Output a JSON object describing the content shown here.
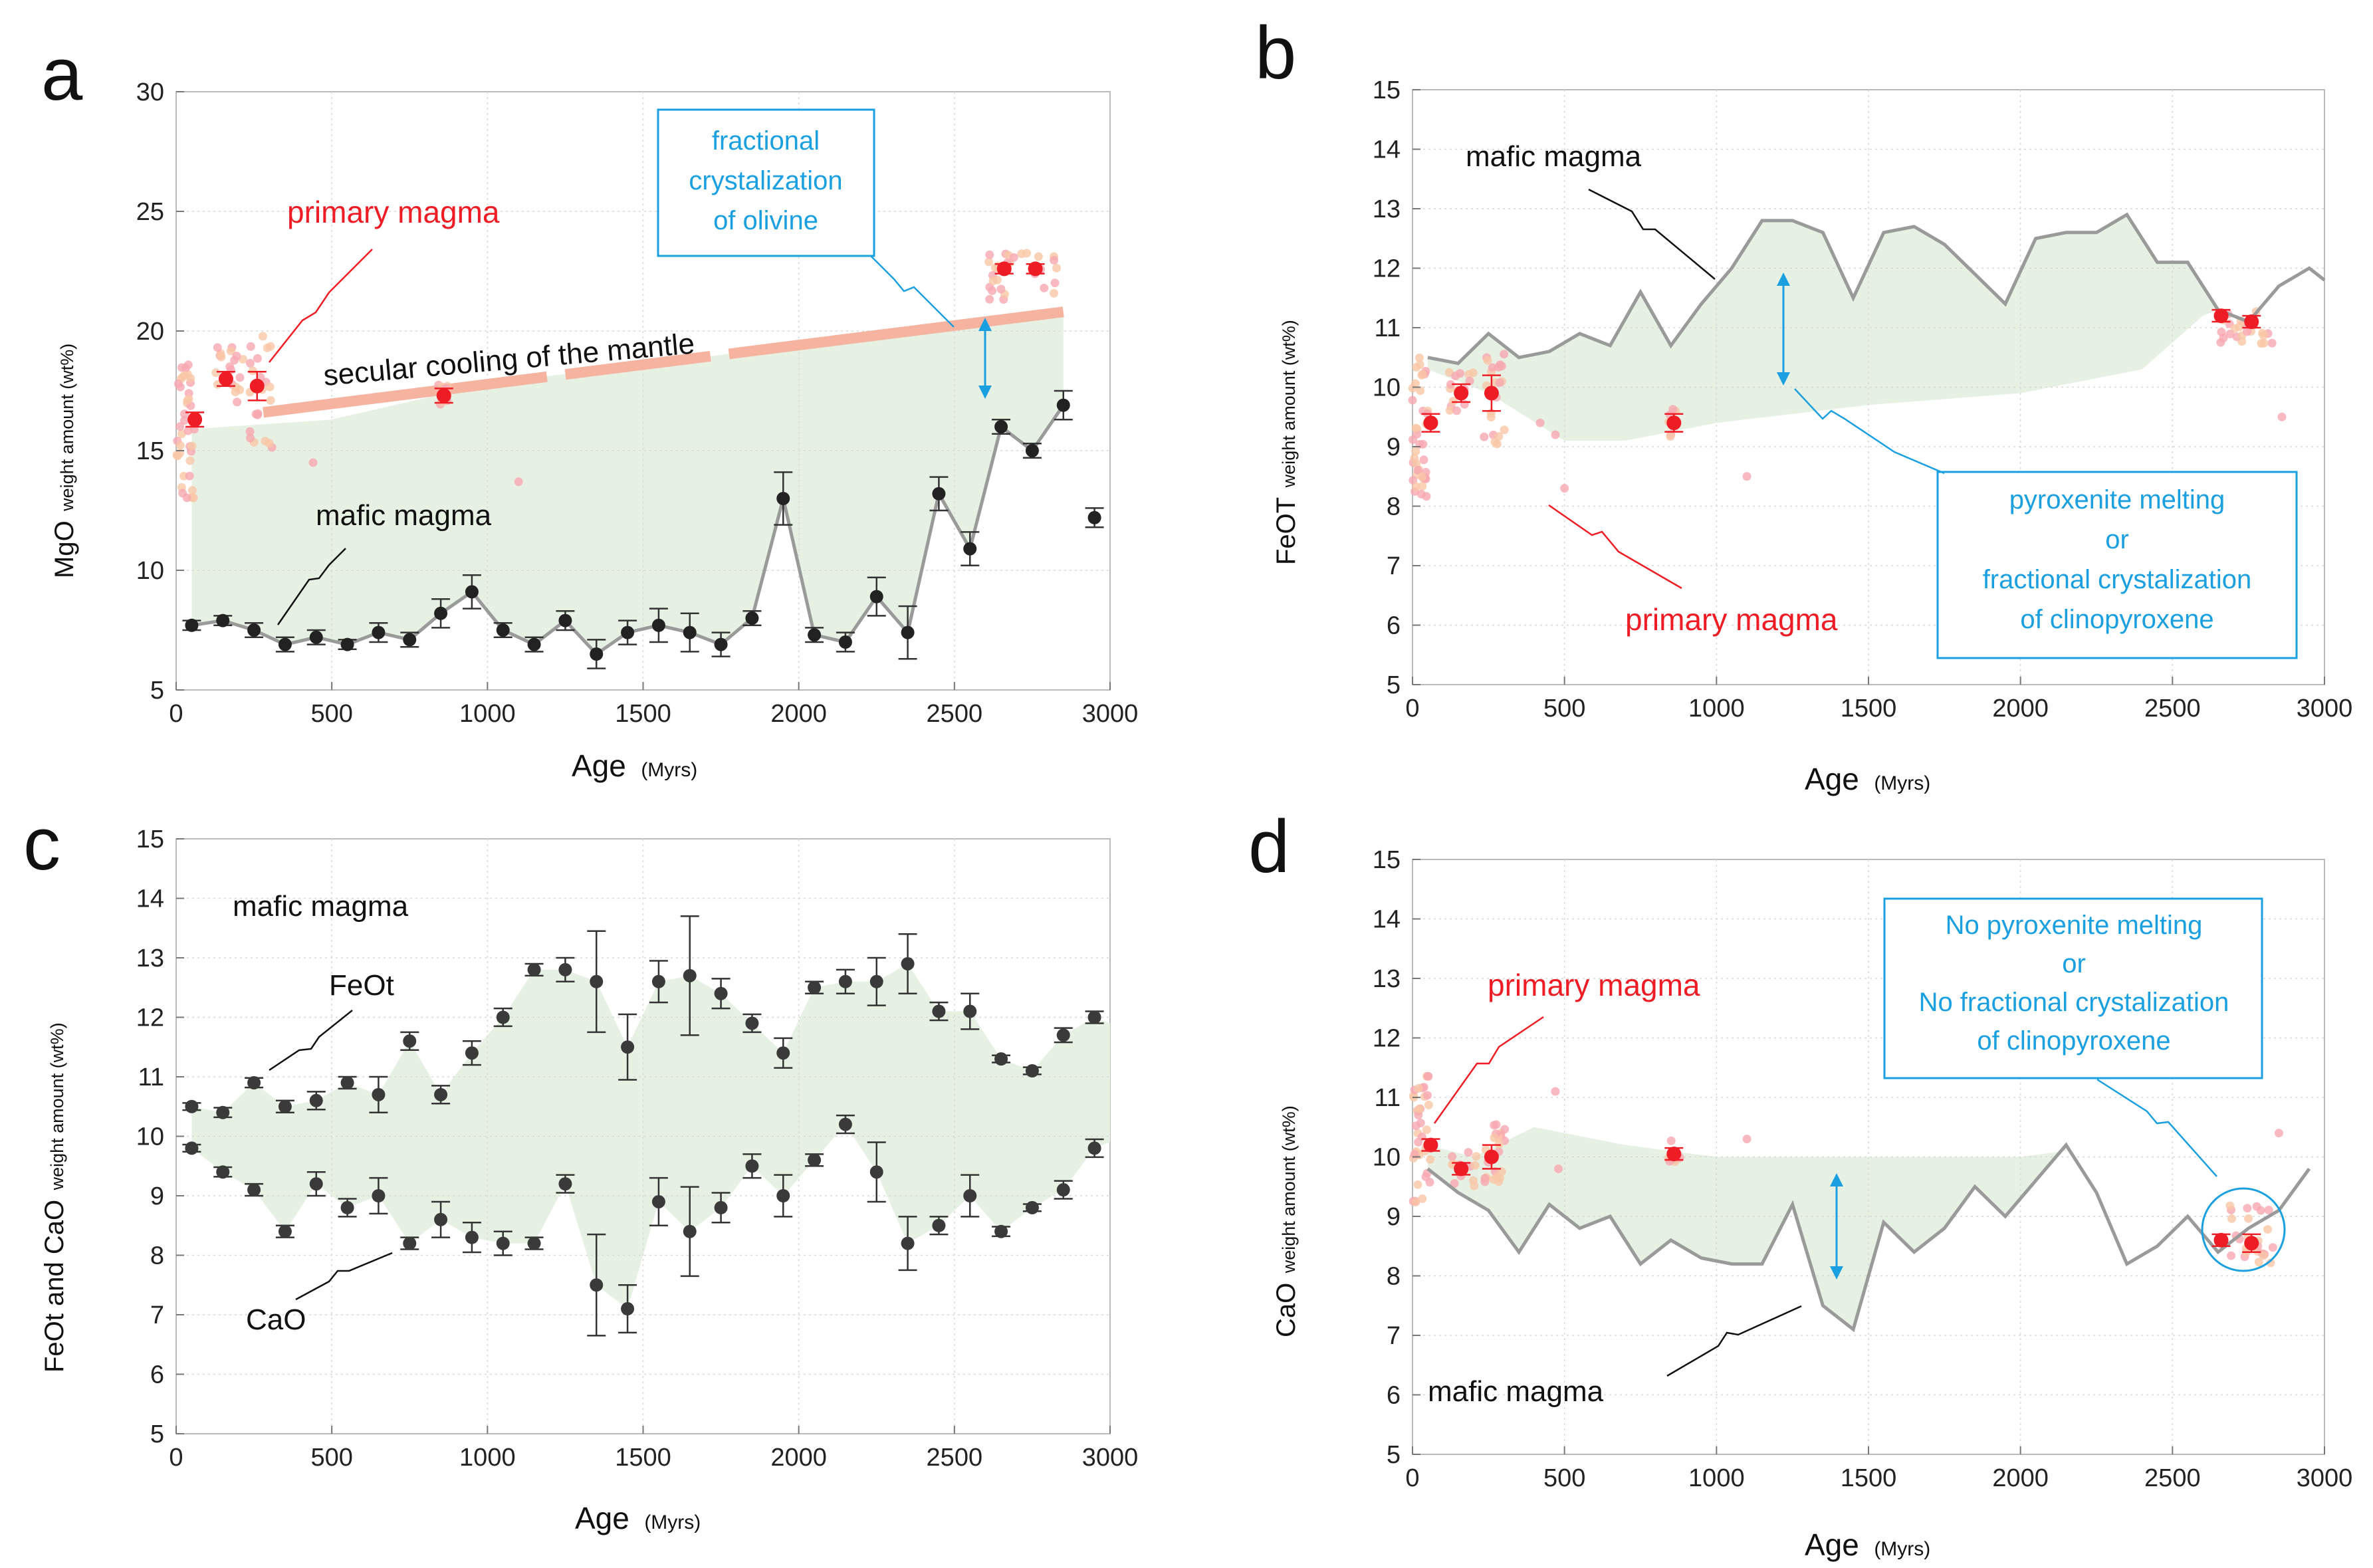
{
  "colors": {
    "envelope": "#e6f1e4",
    "mafic_line": "#9a9a9a",
    "mafic_point": "#222222",
    "primary_point": "#ee1c24",
    "primary_cloud": "#f7a8b0",
    "primary_cloud_alt": "#f9c7a6",
    "blue": "#1aa0e0",
    "cooling": "#f6b3a0"
  },
  "chart_data": [
    {
      "panel": "a",
      "type": "scatter",
      "ylabel_main": "MgO",
      "ylabel_small": "weight amount (wt%)",
      "xlabel": "Age",
      "xlabel_unit": "(Myrs)",
      "xlim": [
        0,
        3000
      ],
      "ylim": [
        5,
        30
      ],
      "xticks": [
        "0",
        "500",
        "1000",
        "1500",
        "2000",
        "2500",
        "3000"
      ],
      "yticks": [
        "5",
        "10",
        "15",
        "20",
        "25",
        "30"
      ],
      "series": [
        {
          "name": "mafic magma",
          "x": [
            50,
            150,
            250,
            350,
            450,
            550,
            650,
            750,
            850,
            950,
            1050,
            1150,
            1250,
            1350,
            1450,
            1550,
            1650,
            1750,
            1850,
            1950,
            2050,
            2150,
            2250,
            2350,
            2450,
            2550,
            2650,
            2750,
            2850,
            2950
          ],
          "y": [
            7.7,
            7.9,
            7.5,
            6.9,
            7.2,
            6.9,
            7.4,
            7.1,
            8.2,
            9.1,
            7.5,
            6.9,
            7.9,
            6.5,
            7.4,
            7.7,
            7.4,
            6.9,
            8.0,
            13.0,
            7.3,
            7.0,
            8.9,
            7.4,
            13.2,
            10.9,
            16.0,
            15.0,
            16.9,
            12.2
          ],
          "err": [
            0.2,
            0.2,
            0.3,
            0.3,
            0.3,
            0.2,
            0.4,
            0.3,
            0.6,
            0.7,
            0.3,
            0.3,
            0.4,
            0.6,
            0.5,
            0.7,
            0.8,
            0.5,
            0.3,
            1.1,
            0.3,
            0.4,
            0.8,
            1.1,
            0.7,
            0.7,
            0.3,
            0.3,
            0.6,
            0.4
          ]
        },
        {
          "name": "primary magma",
          "x": [
            60,
            160,
            260,
            860,
            2660,
            2760
          ],
          "y": [
            16.3,
            18.0,
            17.7,
            17.3,
            22.6,
            22.6
          ],
          "err": [
            0.3,
            0.3,
            0.6,
            0.3,
            0.2,
            0.2
          ]
        }
      ],
      "envelope_top": [
        [
          50,
          15.9
        ],
        [
          500,
          16.3
        ],
        [
          1000,
          17.8
        ],
        [
          1500,
          18.6
        ],
        [
          2000,
          19.4
        ],
        [
          2500,
          20.0
        ],
        [
          2850,
          20.8
        ]
      ],
      "line_label_series": "mafic magma",
      "annotations": {
        "mafic": "mafic magma",
        "primary": "primary magma",
        "cooling": "secular cooling of the mantle",
        "box_lines": [
          "fractional",
          "crystalization",
          "of olivine"
        ]
      }
    },
    {
      "panel": "b",
      "type": "line",
      "ylabel_main": "FeOT",
      "ylabel_small": "weight amount (wt%)",
      "xlabel": "Age",
      "xlabel_unit": "(Myrs)",
      "xlim": [
        0,
        3000
      ],
      "ylim": [
        5,
        15
      ],
      "xticks": [
        "0",
        "500",
        "1000",
        "1500",
        "2000",
        "2500",
        "3000"
      ],
      "yticks": [
        "5",
        "6",
        "7",
        "8",
        "9",
        "10",
        "11",
        "12",
        "13",
        "14",
        "15"
      ],
      "series": [
        {
          "name": "mafic magma",
          "x": [
            50,
            150,
            250,
            350,
            450,
            550,
            650,
            750,
            850,
            950,
            1050,
            1150,
            1250,
            1350,
            1450,
            1550,
            1650,
            1750,
            1850,
            1950,
            2050,
            2150,
            2250,
            2350,
            2450,
            2550,
            2650,
            2750,
            2850,
            2950,
            3000
          ],
          "y": [
            10.5,
            10.4,
            10.9,
            10.5,
            10.6,
            10.9,
            10.7,
            11.6,
            10.7,
            11.4,
            12.0,
            12.8,
            12.8,
            12.6,
            11.5,
            12.6,
            12.7,
            12.4,
            11.9,
            11.4,
            12.5,
            12.6,
            12.6,
            12.9,
            12.1,
            12.1,
            11.3,
            11.1,
            11.7,
            12.0,
            11.8
          ]
        },
        {
          "name": "primary magma",
          "x": [
            60,
            160,
            260,
            860,
            2660,
            2760
          ],
          "y": [
            9.4,
            9.9,
            9.9,
            9.4,
            11.2,
            11.1
          ],
          "err": [
            0.15,
            0.15,
            0.3,
            0.15,
            0.1,
            0.1
          ]
        }
      ],
      "envelope_bottom": [
        [
          50,
          10.3
        ],
        [
          250,
          9.9
        ],
        [
          500,
          9.1
        ],
        [
          700,
          9.1
        ],
        [
          1000,
          9.4
        ],
        [
          1500,
          9.7
        ],
        [
          2000,
          9.9
        ],
        [
          2400,
          10.3
        ],
        [
          2600,
          11.2
        ]
      ],
      "annotations": {
        "mafic": "mafic magma",
        "primary": "primary magma",
        "box_lines": [
          "pyroxenite melting",
          "or",
          "fractional crystalization",
          "of  clinopyroxene"
        ]
      }
    },
    {
      "panel": "c",
      "type": "scatter",
      "ylabel_main": "FeOt and CaO",
      "ylabel_small": "weight amount (wt%)",
      "xlabel": "Age",
      "xlabel_unit": "(Myrs)",
      "xlim": [
        0,
        3000
      ],
      "ylim": [
        5,
        15
      ],
      "xticks": [
        "0",
        "500",
        "1000",
        "1500",
        "2000",
        "2500",
        "3000"
      ],
      "yticks": [
        "5",
        "6",
        "7",
        "8",
        "9",
        "10",
        "11",
        "12",
        "13",
        "14",
        "15"
      ],
      "series": [
        {
          "name": "FeOt",
          "x": [
            50,
            150,
            250,
            350,
            450,
            550,
            650,
            750,
            850,
            950,
            1050,
            1150,
            1250,
            1350,
            1450,
            1550,
            1650,
            1750,
            1850,
            1950,
            2050,
            2150,
            2250,
            2350,
            2450,
            2550,
            2650,
            2750,
            2850,
            2950
          ],
          "y": [
            10.5,
            10.4,
            10.9,
            10.5,
            10.6,
            10.9,
            10.7,
            11.6,
            10.7,
            11.4,
            12.0,
            12.8,
            12.8,
            12.6,
            11.5,
            12.6,
            12.7,
            12.4,
            11.9,
            11.4,
            12.5,
            12.6,
            12.6,
            12.9,
            12.1,
            12.1,
            11.3,
            11.1,
            11.7,
            12.0
          ],
          "err": [
            0.06,
            0.08,
            0.08,
            0.1,
            0.15,
            0.1,
            0.3,
            0.15,
            0.15,
            0.2,
            0.15,
            0.1,
            0.2,
            0.85,
            0.55,
            0.35,
            1.0,
            0.25,
            0.15,
            0.25,
            0.1,
            0.2,
            0.4,
            0.5,
            0.15,
            0.3,
            0.06,
            0.06,
            0.12,
            0.1
          ]
        },
        {
          "name": "CaO",
          "x": [
            50,
            150,
            250,
            350,
            450,
            550,
            650,
            750,
            850,
            950,
            1050,
            1150,
            1250,
            1350,
            1450,
            1550,
            1650,
            1750,
            1850,
            1950,
            2050,
            2150,
            2250,
            2350,
            2450,
            2550,
            2650,
            2750,
            2850,
            2950
          ],
          "y": [
            9.8,
            9.4,
            9.1,
            8.4,
            9.2,
            8.8,
            9.0,
            8.2,
            8.6,
            8.3,
            8.2,
            8.2,
            9.2,
            7.5,
            7.1,
            8.9,
            8.4,
            8.8,
            9.5,
            9.0,
            9.6,
            10.2,
            9.4,
            8.2,
            8.5,
            9.0,
            8.4,
            8.8,
            9.1,
            9.8
          ],
          "err": [
            0.06,
            0.08,
            0.1,
            0.1,
            0.2,
            0.15,
            0.3,
            0.1,
            0.3,
            0.25,
            0.2,
            0.1,
            0.15,
            0.85,
            0.4,
            0.4,
            0.75,
            0.25,
            0.2,
            0.35,
            0.1,
            0.15,
            0.5,
            0.45,
            0.15,
            0.35,
            0.08,
            0.06,
            0.15,
            0.15
          ]
        }
      ],
      "annotations": {
        "mafic": "mafic magma",
        "feot": "FeOt",
        "cao": "CaO"
      }
    },
    {
      "panel": "d",
      "type": "line",
      "ylabel_main": "CaO",
      "ylabel_small": "weight amount (wt%)",
      "xlabel": "Age",
      "xlabel_unit": "(Myrs)",
      "xlim": [
        0,
        3000
      ],
      "ylim": [
        5,
        15
      ],
      "xticks": [
        "0",
        "500",
        "1000",
        "1500",
        "2000",
        "2500",
        "3000"
      ],
      "yticks": [
        "5",
        "6",
        "7",
        "8",
        "9",
        "10",
        "11",
        "12",
        "13",
        "14",
        "15"
      ],
      "series": [
        {
          "name": "mafic magma",
          "x": [
            50,
            150,
            250,
            350,
            450,
            550,
            650,
            750,
            850,
            950,
            1050,
            1150,
            1250,
            1350,
            1450,
            1550,
            1650,
            1750,
            1850,
            1950,
            2050,
            2150,
            2250,
            2350,
            2450,
            2550,
            2650,
            2750,
            2850,
            2950
          ],
          "y": [
            9.8,
            9.4,
            9.1,
            8.4,
            9.2,
            8.8,
            9.0,
            8.2,
            8.6,
            8.3,
            8.2,
            8.2,
            9.2,
            7.5,
            7.1,
            8.9,
            8.4,
            8.8,
            9.5,
            9.0,
            9.6,
            10.2,
            9.4,
            8.2,
            8.5,
            9.0,
            8.4,
            8.8,
            9.1,
            9.8
          ]
        },
        {
          "name": "primary magma",
          "x": [
            60,
            160,
            260,
            860,
            2660,
            2760
          ],
          "y": [
            10.2,
            9.8,
            10.0,
            10.05,
            8.6,
            8.55
          ],
          "err": [
            0.1,
            0.1,
            0.2,
            0.1,
            0.1,
            0.15
          ]
        }
      ],
      "envelope_top": [
        [
          50,
          10.2
        ],
        [
          200,
          10.0
        ],
        [
          400,
          10.5
        ],
        [
          700,
          10.2
        ],
        [
          1000,
          10.0
        ],
        [
          1500,
          10.0
        ],
        [
          2000,
          10.0
        ],
        [
          2150,
          10.1
        ]
      ],
      "annotations": {
        "mafic": "mafic magma",
        "primary": "primary magma",
        "box_lines": [
          "No pyroxenite melting",
          "or",
          "No fractional crystalization",
          "of  clinopyroxene"
        ]
      }
    }
  ]
}
